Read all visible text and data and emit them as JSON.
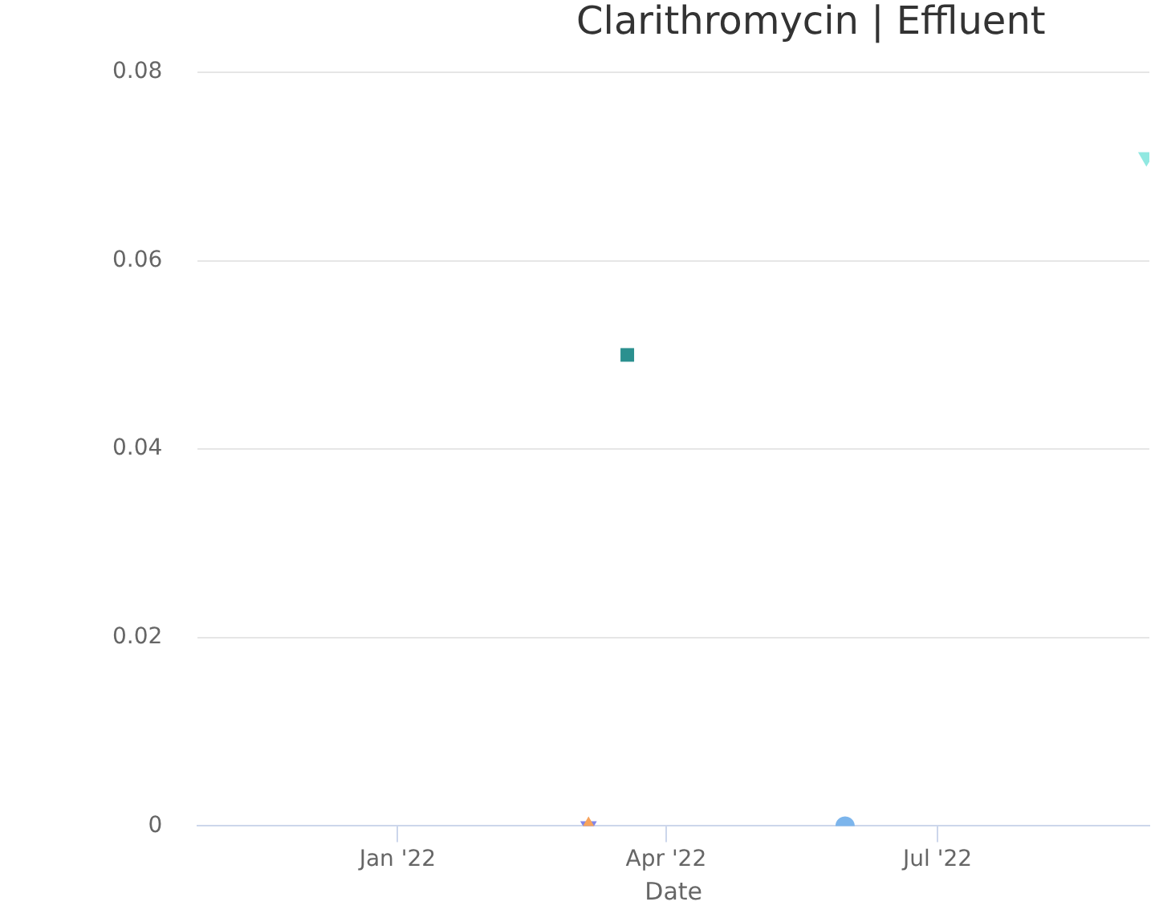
{
  "chart_data": {
    "type": "scatter",
    "title": "Clarithromycin | Effluent",
    "xlabel": "Date",
    "series": [
      {
        "color": "#f7a35c",
        "marker": "triangle",
        "x": [
          "2022-03-06"
        ],
        "values": [
          0
        ]
      },
      {
        "color": "#8085e9",
        "marker": "triangle-down",
        "x": [
          "2022-03-06"
        ],
        "values": [
          0
        ]
      },
      {
        "color": "#2b908f",
        "marker": "square",
        "x": [
          "2022-03-19"
        ],
        "values": [
          0.05
        ]
      },
      {
        "color": "#7cb5ec",
        "marker": "circle",
        "x": [
          "2022-05-31"
        ],
        "values": [
          0
        ]
      },
      {
        "color": "#91e8e1",
        "marker": "triangle-down",
        "x": [
          "2022-09-09"
        ],
        "values": [
          0.071
        ]
      }
    ],
    "xlim": [
      "2021-10-26",
      "2022-09-10"
    ],
    "xticks": [
      {
        "value": "2022-01-01",
        "label": "Jan '22"
      },
      {
        "value": "2022-04-01",
        "label": "Apr '22"
      },
      {
        "value": "2022-07-01",
        "label": "Jul '22"
      }
    ],
    "ylim": [
      0,
      0.08
    ],
    "yticks": [
      0,
      0.02,
      0.04,
      0.06,
      0.08
    ],
    "grid": "y",
    "legend": false
  }
}
